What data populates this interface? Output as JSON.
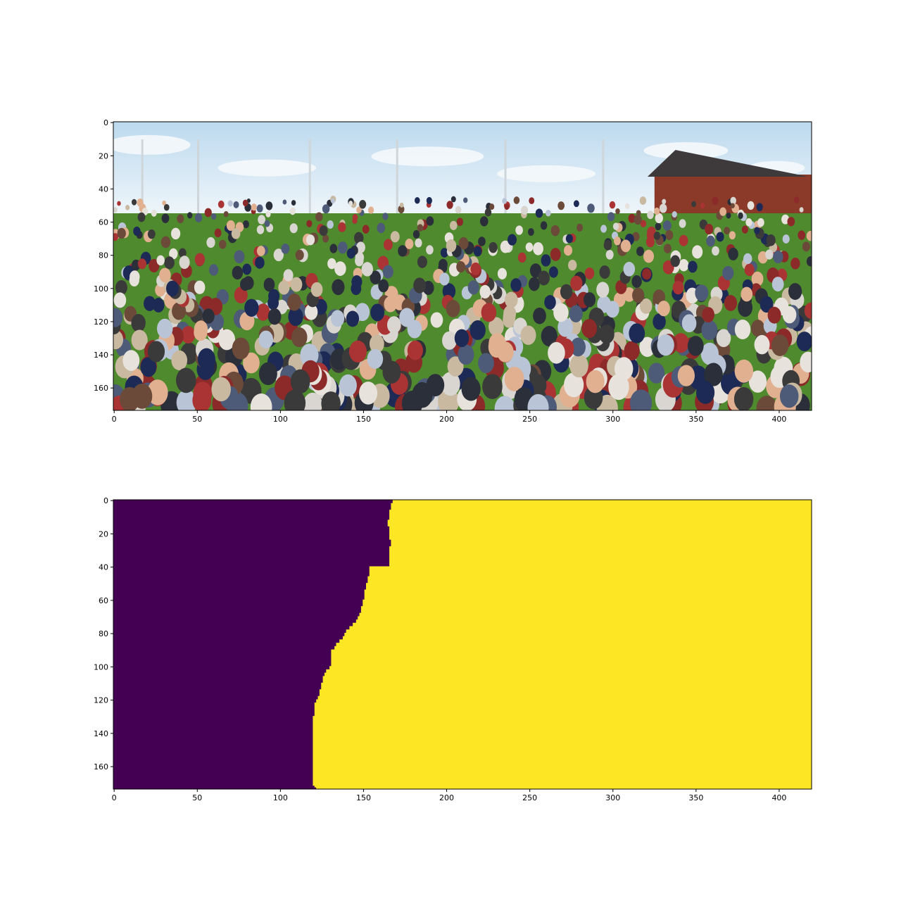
{
  "figure": {
    "background": "#ffffff"
  },
  "chart_data": [
    {
      "type": "image",
      "title": "",
      "xlabel": "",
      "ylabel": "",
      "xlim": [
        -0.5,
        419.5
      ],
      "ylim": [
        173.5,
        -0.5
      ],
      "x_ticks": [
        0,
        50,
        100,
        150,
        200,
        250,
        300,
        350,
        400
      ],
      "y_ticks": [
        0,
        20,
        40,
        60,
        80,
        100,
        120,
        140,
        160
      ],
      "image_content": "photograph of a large crowd seated on a grass field under a blue sky with clouds, light poles, and a brick building on the right; the left third appears duplicated/stitched",
      "palette": {
        "sky": "#bcd9ee",
        "sky_light": "#eef5fa",
        "cloud": "#f4f8fb",
        "grass": "#4f8a2e",
        "grass_dark": "#3b6d22",
        "building": "#8b3a2a",
        "roof": "#3e3a3c"
      }
    },
    {
      "type": "heatmap",
      "title": "",
      "xlabel": "",
      "ylabel": "",
      "colormap": "viridis",
      "classes": [
        0,
        1
      ],
      "class_colors": [
        "#440154",
        "#fde725"
      ],
      "xlim": [
        -0.5,
        419.5
      ],
      "ylim": [
        173.5,
        -0.5
      ],
      "x_ticks": [
        0,
        50,
        100,
        150,
        200,
        250,
        300,
        350,
        400
      ],
      "y_ticks": [
        0,
        20,
        40,
        60,
        80,
        100,
        120,
        140,
        160
      ],
      "boundary": {
        "description": "per-row x where the mask switches from class 0 (left) to class 1 (right)",
        "rows": [
          0,
          2,
          4,
          6,
          8,
          12,
          16,
          20,
          22,
          24,
          26,
          28,
          30,
          34,
          38,
          39,
          40,
          44,
          46,
          50,
          54,
          56,
          60,
          64,
          68,
          70,
          72,
          74,
          76,
          78,
          80,
          82,
          84,
          86,
          88,
          90,
          92,
          94,
          96,
          98,
          100,
          102,
          104,
          106,
          108,
          110,
          112,
          114,
          116,
          118,
          120,
          122,
          124,
          126,
          128,
          130,
          132,
          170,
          172,
          173
        ],
        "x": [
          168,
          167,
          167,
          166,
          166,
          165,
          166,
          166,
          166,
          167,
          167,
          166,
          166,
          166,
          166,
          166,
          154,
          154,
          153,
          152,
          151,
          151,
          150,
          149,
          148,
          147,
          146,
          144,
          142,
          140,
          139,
          138,
          136,
          134,
          133,
          131,
          131,
          131,
          131,
          131,
          130,
          128,
          127,
          126,
          126,
          125,
          125,
          124,
          124,
          123,
          122,
          121,
          121,
          121,
          121,
          120,
          120,
          120,
          121,
          122
        ]
      }
    }
  ]
}
